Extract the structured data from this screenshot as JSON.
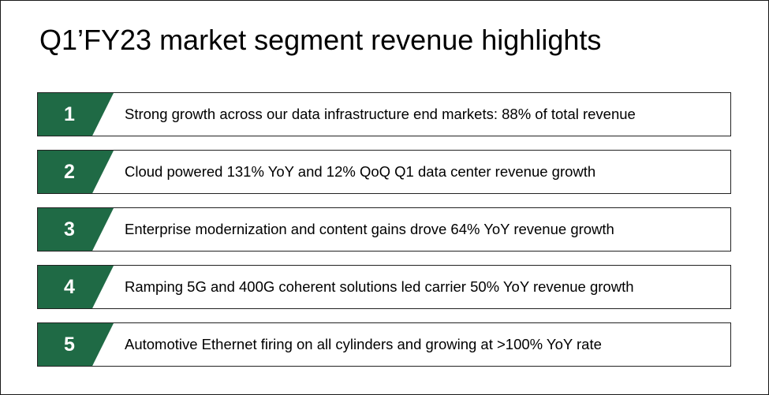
{
  "title": "Q1’FY23 market segment revenue highlights",
  "highlights": [
    {
      "number": "1",
      "text": "Strong growth across our data infrastructure end markets: 88% of total revenue"
    },
    {
      "number": "2",
      "text": "Cloud powered 131% YoY and 12% QoQ Q1 data center revenue growth"
    },
    {
      "number": "3",
      "text": "Enterprise modernization and content gains drove 64% YoY revenue growth"
    },
    {
      "number": "4",
      "text": "Ramping 5G and 400G coherent solutions led carrier 50% YoY revenue growth"
    },
    {
      "number": "5",
      "text": "Automotive Ethernet firing on all cylinders and growing at >100% YoY rate"
    }
  ],
  "colors": {
    "badge": "#1f6a45",
    "text": "#000000",
    "border": "#222222"
  }
}
